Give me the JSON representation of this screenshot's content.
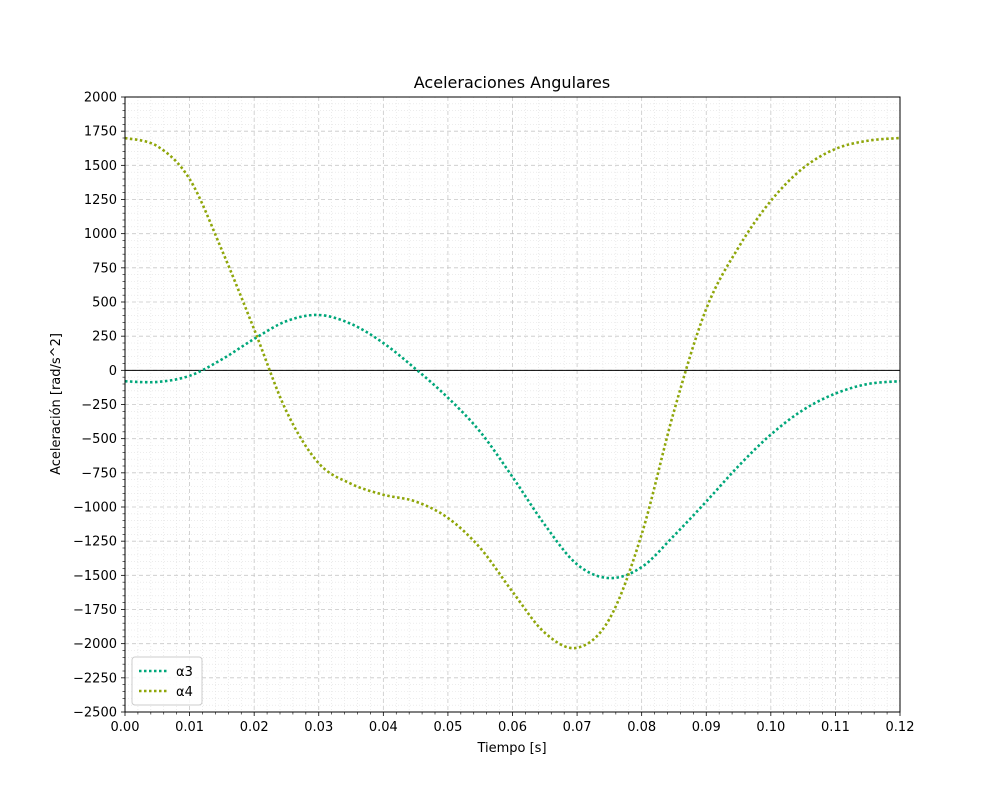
{
  "chart_data": {
    "type": "line",
    "title": "Aceleraciones Angulares",
    "xlabel": "Tiempo [s]",
    "ylabel": "Aceleración [rad/s^2]",
    "xlim": [
      0,
      0.12
    ],
    "ylim": [
      -2500,
      2000
    ],
    "xticks": [
      "0.00",
      "0.01",
      "0.02",
      "0.03",
      "0.04",
      "0.05",
      "0.06",
      "0.07",
      "0.08",
      "0.09",
      "0.10",
      "0.11",
      "0.12"
    ],
    "yticks": [
      "−2500",
      "−2250",
      "−2000",
      "−1750",
      "−1500",
      "−1250",
      "−1000",
      "−750",
      "−500",
      "−250",
      "0",
      "250",
      "500",
      "750",
      "1000",
      "1250",
      "1500",
      "1750",
      "2000"
    ],
    "grid": true,
    "minor_grid": true,
    "zero_line": true,
    "legend_position": "lower-left",
    "series": [
      {
        "name": "α3",
        "color": "#00a77a",
        "line_style": "dotted",
        "x": [
          0,
          0.005,
          0.01,
          0.015,
          0.02,
          0.025,
          0.03,
          0.035,
          0.04,
          0.045,
          0.05,
          0.055,
          0.06,
          0.065,
          0.07,
          0.075,
          0.08,
          0.085,
          0.09,
          0.095,
          0.1,
          0.105,
          0.11,
          0.115,
          0.12
        ],
        "y": [
          -80,
          -85,
          -40,
          80,
          230,
          360,
          405,
          340,
          200,
          10,
          -200,
          -450,
          -780,
          -1130,
          -1420,
          -1520,
          -1440,
          -1210,
          -960,
          -700,
          -470,
          -290,
          -170,
          -100,
          -80
        ]
      },
      {
        "name": "α4",
        "color": "#8fa60a",
        "line_style": "dotted",
        "x": [
          0,
          0.005,
          0.01,
          0.015,
          0.02,
          0.025,
          0.03,
          0.035,
          0.04,
          0.045,
          0.05,
          0.055,
          0.06,
          0.065,
          0.07,
          0.075,
          0.08,
          0.085,
          0.09,
          0.095,
          0.1,
          0.105,
          0.11,
          0.115,
          0.12
        ],
        "y": [
          1700,
          1640,
          1400,
          880,
          300,
          -300,
          -680,
          -830,
          -910,
          -960,
          -1080,
          -1300,
          -1620,
          -1920,
          -2030,
          -1820,
          -1200,
          -300,
          450,
          900,
          1240,
          1480,
          1620,
          1680,
          1700
        ]
      }
    ]
  }
}
